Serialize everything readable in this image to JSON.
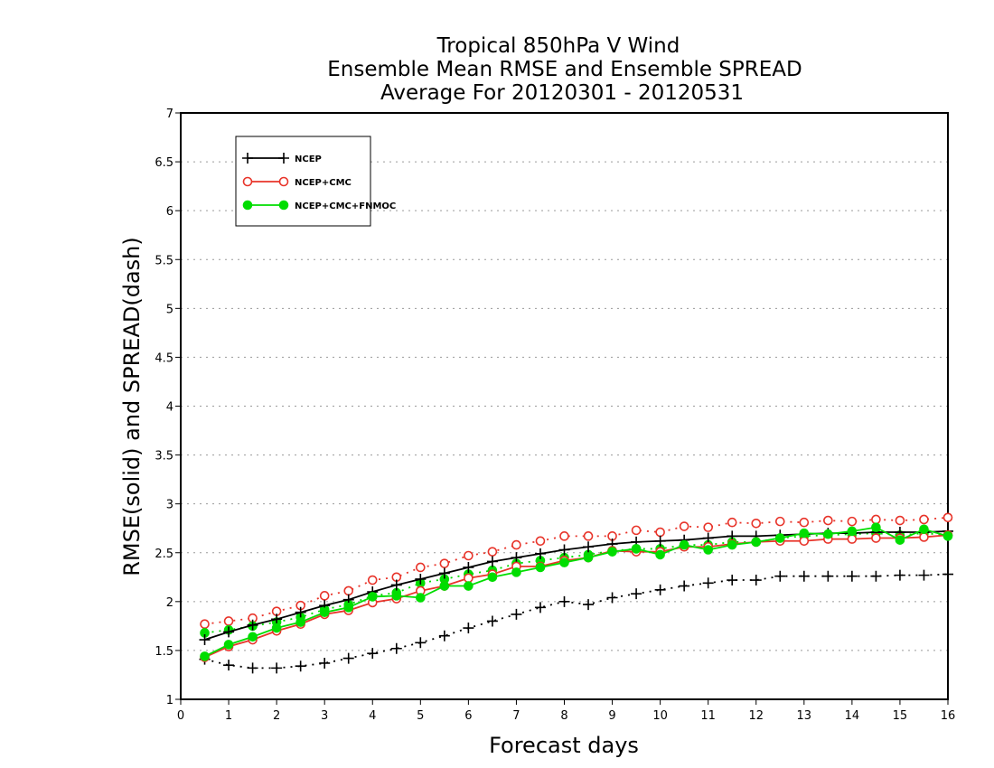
{
  "chart_data": {
    "type": "line",
    "title": [
      "Tropical 850hPa V Wind",
      "Ensemble Mean RMSE and Ensemble SPREAD",
      "Average For 20120301 - 20120531"
    ],
    "xlabel": "Forecast days",
    "ylabel": "RMSE(solid) and SPREAD(dash)",
    "xlim": [
      0,
      16
    ],
    "ylim": [
      1,
      7
    ],
    "x_ticks": [
      "0",
      "1",
      "2",
      "3",
      "4",
      "5",
      "6",
      "7",
      "8",
      "9",
      "10",
      "11",
      "12",
      "13",
      "14",
      "15",
      "16"
    ],
    "y_ticks": [
      "1",
      "1.5",
      "2",
      "2.5",
      "3",
      "3.5",
      "4",
      "4.5",
      "5",
      "5.5",
      "6",
      "6.5",
      "7"
    ],
    "grid": "horizontal dotted",
    "legend_position": "top-left",
    "x": [
      0.5,
      1,
      1.5,
      2,
      2.5,
      3,
      3.5,
      4,
      4.5,
      5,
      5.5,
      6,
      6.5,
      7,
      7.5,
      8,
      8.5,
      9,
      9.5,
      10,
      10.5,
      11,
      11.5,
      12,
      12.5,
      13,
      13.5,
      14,
      14.5,
      15,
      15.5,
      16
    ],
    "series": [
      {
        "name": "NCEP",
        "color": "#000000",
        "marker": "plus",
        "rmse": [
          1.61,
          1.69,
          1.76,
          1.82,
          1.89,
          1.96,
          2.02,
          2.1,
          2.17,
          2.23,
          2.29,
          2.35,
          2.41,
          2.45,
          2.49,
          2.53,
          2.56,
          2.59,
          2.61,
          2.62,
          2.63,
          2.65,
          2.67,
          2.67,
          2.68,
          2.69,
          2.7,
          2.7,
          2.71,
          2.71,
          2.71,
          2.72
        ],
        "spread": [
          1.41,
          1.35,
          1.32,
          1.32,
          1.34,
          1.37,
          1.42,
          1.47,
          1.52,
          1.58,
          1.65,
          1.73,
          1.8,
          1.87,
          1.94,
          2.0,
          1.97,
          2.04,
          2.08,
          2.12,
          2.16,
          2.19,
          2.22,
          2.22,
          2.26,
          2.26,
          2.26,
          2.26,
          2.26,
          2.27,
          2.27,
          2.28
        ]
      },
      {
        "name": "NCEP+CMC",
        "color": "#e8342a",
        "marker": "open-circle",
        "rmse": [
          1.43,
          1.54,
          1.61,
          1.7,
          1.77,
          1.87,
          1.91,
          1.99,
          2.03,
          2.11,
          2.16,
          2.24,
          2.28,
          2.36,
          2.36,
          2.42,
          2.45,
          2.52,
          2.51,
          2.51,
          2.56,
          2.56,
          2.59,
          2.61,
          2.62,
          2.62,
          2.64,
          2.64,
          2.65,
          2.65,
          2.66,
          2.68
        ],
        "spread": [
          1.77,
          1.8,
          1.83,
          1.9,
          1.96,
          2.06,
          2.11,
          2.22,
          2.25,
          2.35,
          2.39,
          2.47,
          2.51,
          2.58,
          2.62,
          2.67,
          2.67,
          2.67,
          2.73,
          2.71,
          2.77,
          2.76,
          2.81,
          2.8,
          2.82,
          2.81,
          2.83,
          2.82,
          2.84,
          2.83,
          2.84,
          2.86
        ]
      },
      {
        "name": "NCEP+CMC+FNMOC",
        "color": "#00dd00",
        "marker": "filled-circle",
        "rmse": [
          1.44,
          1.56,
          1.64,
          1.73,
          1.79,
          1.89,
          1.94,
          2.05,
          2.06,
          2.04,
          2.16,
          2.16,
          2.25,
          2.3,
          2.35,
          2.4,
          2.45,
          2.51,
          2.54,
          2.48,
          2.58,
          2.53,
          2.58,
          2.61,
          2.65,
          2.7,
          2.69,
          2.72,
          2.76,
          2.63,
          2.74,
          2.67
        ],
        "spread": [
          1.68,
          1.71,
          1.75,
          1.79,
          1.84,
          1.92,
          1.97,
          2.06,
          2.09,
          2.19,
          2.23,
          2.28,
          2.32,
          2.39,
          2.42,
          2.45,
          2.48,
          2.52,
          2.54,
          2.54,
          2.58,
          2.58,
          2.61,
          2.61,
          2.65,
          2.67,
          2.68,
          2.69,
          2.7,
          2.68,
          2.7,
          2.68
        ]
      }
    ]
  }
}
